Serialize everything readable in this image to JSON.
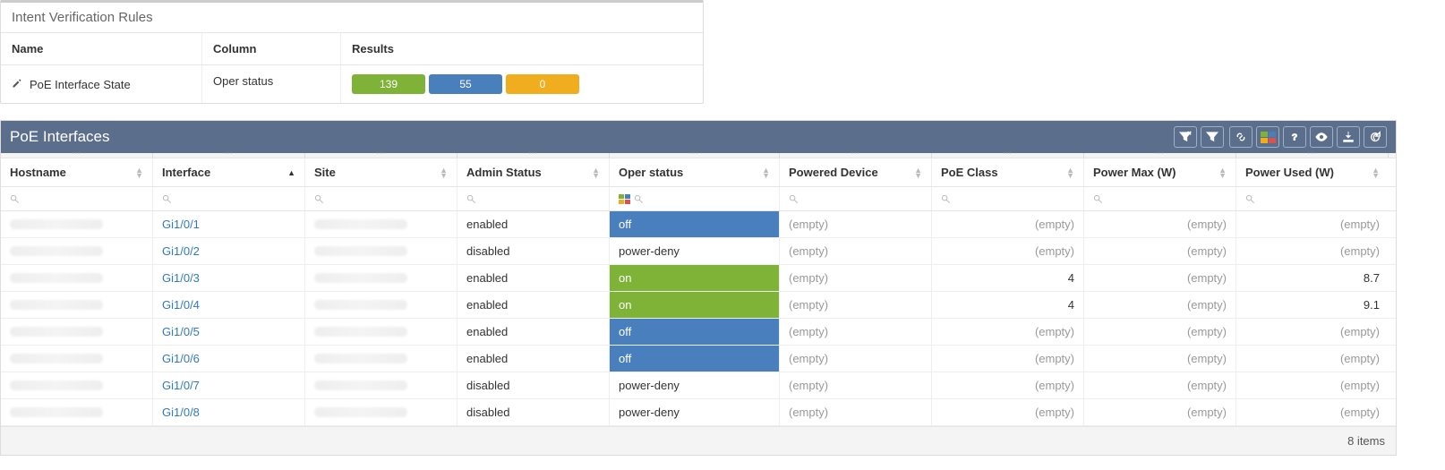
{
  "intent": {
    "title": "Intent Verification Rules",
    "headers": {
      "name": "Name",
      "column": "Column",
      "results": "Results"
    },
    "rule": {
      "name": "PoE Interface State",
      "column": "Oper status",
      "pills": {
        "green": "139",
        "blue": "55",
        "amber": "0"
      }
    }
  },
  "colors": {
    "green": "#7eb338",
    "blue": "#4a7fbd",
    "amber": "#f0ad1e",
    "header_bg": "#5b6e8c"
  },
  "poe": {
    "title": "PoE Interfaces",
    "columns": {
      "hostname": "Hostname",
      "interface": "Interface",
      "site": "Site",
      "admin": "Admin Status",
      "oper": "Oper status",
      "pd": "Powered Device",
      "class": "PoE Class",
      "pmax": "Power Max (W)",
      "pused": "Power Used (W)"
    },
    "sorted_column": "interface",
    "sort_dir": "asc",
    "empty_label": "(empty)",
    "rows": [
      {
        "interface": "Gi1/0/1",
        "admin": "enabled",
        "oper": "off",
        "oper_color": "blue",
        "class": "(empty)",
        "pmax": "(empty)",
        "pused": "(empty)"
      },
      {
        "interface": "Gi1/0/2",
        "admin": "disabled",
        "oper": "power-deny",
        "oper_color": "",
        "class": "(empty)",
        "pmax": "(empty)",
        "pused": "(empty)"
      },
      {
        "interface": "Gi1/0/3",
        "admin": "enabled",
        "oper": "on",
        "oper_color": "green",
        "class": "4",
        "pmax": "(empty)",
        "pused": "8.7"
      },
      {
        "interface": "Gi1/0/4",
        "admin": "enabled",
        "oper": "on",
        "oper_color": "green",
        "class": "4",
        "pmax": "(empty)",
        "pused": "9.1"
      },
      {
        "interface": "Gi1/0/5",
        "admin": "enabled",
        "oper": "off",
        "oper_color": "blue",
        "class": "(empty)",
        "pmax": "(empty)",
        "pused": "(empty)"
      },
      {
        "interface": "Gi1/0/6",
        "admin": "enabled",
        "oper": "off",
        "oper_color": "blue",
        "class": "(empty)",
        "pmax": "(empty)",
        "pused": "(empty)"
      },
      {
        "interface": "Gi1/0/7",
        "admin": "disabled",
        "oper": "power-deny",
        "oper_color": "",
        "class": "(empty)",
        "pmax": "(empty)",
        "pused": "(empty)"
      },
      {
        "interface": "Gi1/0/8",
        "admin": "disabled",
        "oper": "power-deny",
        "oper_color": "",
        "class": "(empty)",
        "pmax": "(empty)",
        "pused": "(empty)"
      }
    ],
    "footer": "8 items"
  }
}
